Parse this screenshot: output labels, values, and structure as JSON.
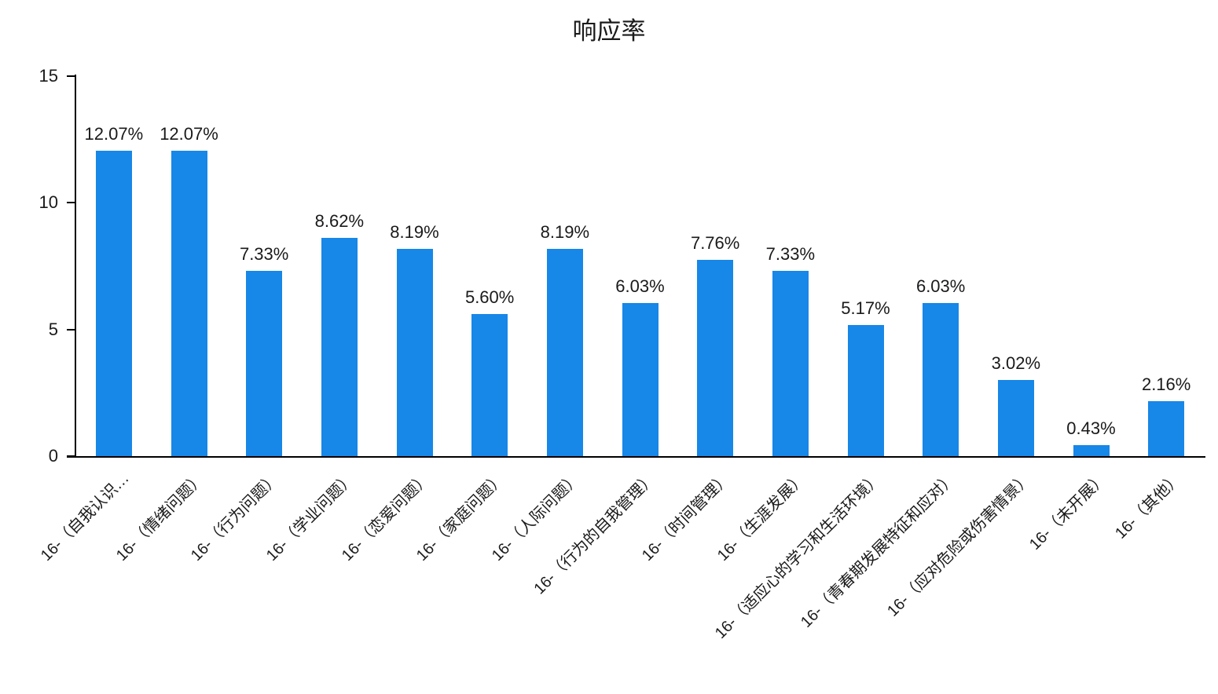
{
  "title": "响应率",
  "colors": {
    "bar": "#1787E8",
    "axis": "#000000",
    "text": "#1A1A1A",
    "background": "#FFFFFF"
  },
  "chart_data": {
    "type": "bar",
    "title": "响应率",
    "categories": [
      "16-（自我认识…",
      "16-（情绪问题）",
      "16-（行为问题）",
      "16-（学业问题）",
      "16-（恋爱问题）",
      "16-（家庭问题）",
      "16-（人际问题）",
      "16-（行为的自我管理）",
      "16-（时间管理）",
      "16-（生涯发展）",
      "16-（适应心的学习和生活环境）",
      "16-（青春期发展特征和应对）",
      "16-（应对危险或伤害情景）",
      "16-（未开展）",
      "16-（其他）"
    ],
    "values": [
      12.07,
      12.07,
      7.33,
      8.62,
      8.19,
      5.6,
      8.19,
      6.03,
      7.76,
      7.33,
      5.17,
      6.03,
      3.02,
      0.43,
      2.16
    ],
    "data_labels": [
      "12.07%",
      "12.07%",
      "7.33%",
      "8.62%",
      "8.19%",
      "5.60%",
      "8.19%",
      "6.03%",
      "7.76%",
      "7.33%",
      "5.17%",
      "6.03%",
      "3.02%",
      "0.43%",
      "2.16%"
    ],
    "xlabel": "",
    "ylabel": "",
    "ylim": [
      0,
      15
    ],
    "yticks": [
      0,
      5,
      10,
      15
    ],
    "ytick_labels": [
      "0",
      "5",
      "10",
      "15"
    ],
    "grid": false,
    "legend": false,
    "bar_color": "#1787E8",
    "x_label_rotation_deg": 45
  }
}
